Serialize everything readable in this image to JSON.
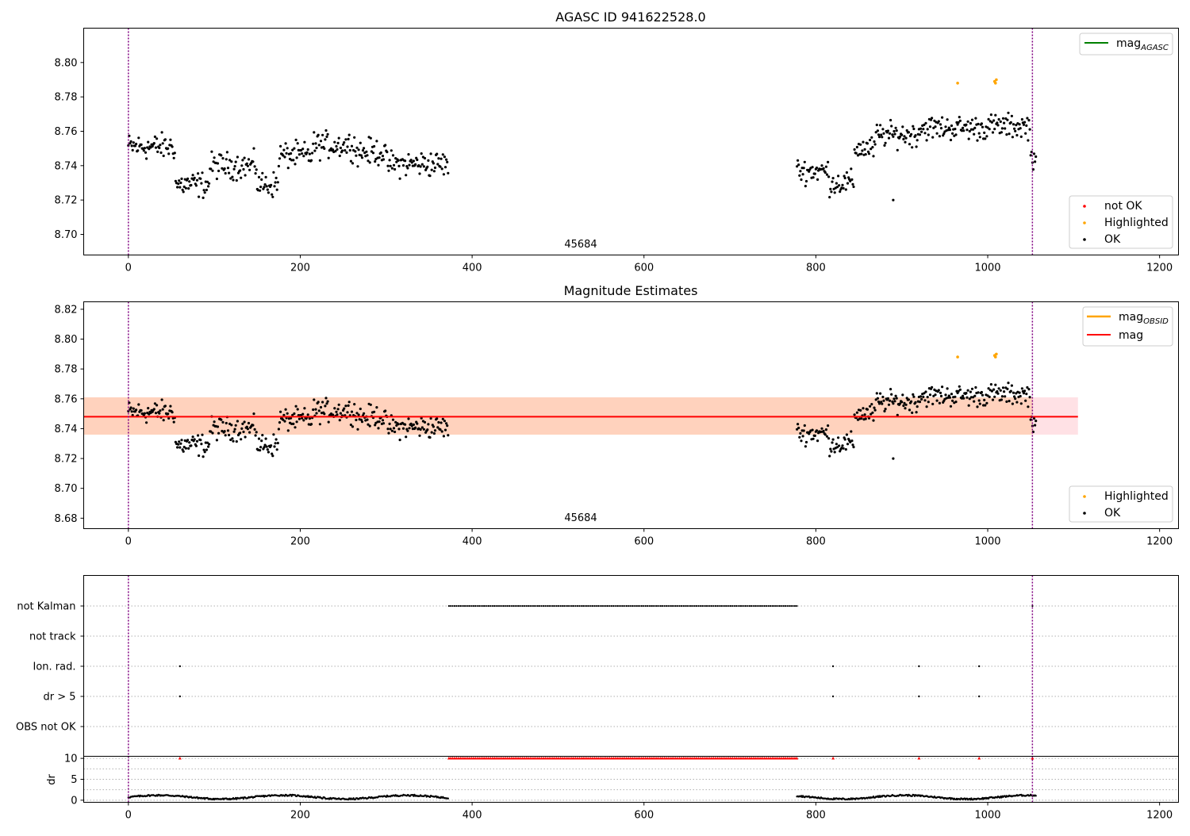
{
  "chart_data": [
    {
      "panel": "top",
      "type": "scatter",
      "title": "AGASC ID 941622528.0",
      "xlim": [
        -52,
        1222
      ],
      "ylim": [
        8.688,
        8.82
      ],
      "xticks": [
        0,
        200,
        400,
        600,
        800,
        1000,
        1200
      ],
      "yticks": [
        "8.70",
        "8.72",
        "8.74",
        "8.76",
        "8.78",
        "8.80"
      ],
      "annotation": "45684",
      "vlines": [
        0,
        1052
      ],
      "legend_lines": [
        {
          "label": "mag",
          "sub": "AGASC",
          "color": "#008000"
        }
      ],
      "legend_markers": [
        {
          "label": "not OK",
          "color": "#ff0000"
        },
        {
          "label": "Highlighted",
          "color": "#ffa500"
        },
        {
          "label": "OK",
          "color": "#000000"
        }
      ],
      "segments": [
        {
          "x0": 0,
          "x1": 372,
          "step": 1,
          "kind": "A"
        },
        {
          "x0": 778,
          "x1": 1056,
          "step": 1,
          "kind": "B"
        }
      ],
      "highlighted": [
        [
          965,
          8.788
        ],
        [
          1008,
          8.789
        ],
        [
          1010,
          8.79
        ],
        [
          1009,
          8.788
        ]
      ]
    },
    {
      "panel": "middle",
      "type": "scatter",
      "title": "Magnitude Estimates",
      "xlim": [
        -52,
        1222
      ],
      "ylim": [
        8.673,
        8.825
      ],
      "xticks": [
        0,
        200,
        400,
        600,
        800,
        1000,
        1200
      ],
      "yticks": [
        "8.68",
        "8.70",
        "8.72",
        "8.74",
        "8.76",
        "8.78",
        "8.80",
        "8.82"
      ],
      "annotation": "45684",
      "vlines": [
        0,
        1052
      ],
      "mag_line": 8.748,
      "band_obsid": [
        8.736,
        8.761
      ],
      "band_mag": [
        8.736,
        8.761
      ],
      "band_x": [
        -52,
        1105
      ],
      "legend_lines": [
        {
          "label": "mag",
          "sub": "OBSID",
          "color": "#ffa500"
        },
        {
          "label": "mag",
          "sub": "",
          "color": "#ff0000"
        }
      ],
      "legend_markers": [
        {
          "label": "Highlighted",
          "color": "#ffa500"
        },
        {
          "label": "OK",
          "color": "#000000"
        }
      ],
      "highlighted": [
        [
          965,
          8.788
        ],
        [
          1008,
          8.789
        ],
        [
          1010,
          8.79
        ],
        [
          1009,
          8.788
        ]
      ]
    },
    {
      "panel": "flags",
      "type": "scatter",
      "xlim": [
        -52,
        1222
      ],
      "categories": [
        "not Kalman",
        "not track",
        "Ion. rad.",
        "dr > 5",
        "OBS not OK"
      ],
      "vlines": [
        0,
        1052
      ],
      "not_kalman_range": [
        373,
        778
      ],
      "not_kalman_extra": [
        1052
      ],
      "ion_rad": [
        60,
        820,
        920,
        990
      ],
      "dr_gt_5": [
        60,
        820,
        920,
        990
      ]
    },
    {
      "panel": "dr",
      "type": "scatter",
      "xlim": [
        -52,
        1222
      ],
      "xticks": [
        0,
        200,
        400,
        600,
        800,
        1000,
        1200
      ],
      "yticks": [
        "0",
        "5",
        "10"
      ],
      "ylabel": "dr",
      "ylim": [
        -0.5,
        10.5
      ],
      "vlines": [
        0,
        1052
      ],
      "clipped_range": [
        373,
        778
      ],
      "clipped_extra": [
        60,
        820,
        920,
        990,
        1052
      ]
    }
  ]
}
